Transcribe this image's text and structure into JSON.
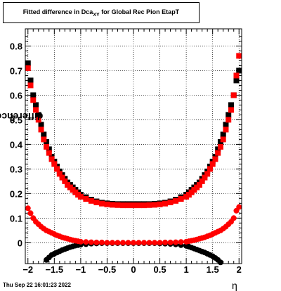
{
  "timestamp": "Thu Sep 22 16:01:23 2022",
  "chart_data": {
    "type": "scatter",
    "title": "Fitted difference in Dca",
    "title_sub": "XY",
    "title_suffix": " for Global Rec Pion EtapT",
    "ylabel": "difference in Dca",
    "ylabel_sub": "XY",
    "xlabel": "η",
    "xlim": [
      -2.05,
      2.05
    ],
    "ylim": [
      -0.085,
      0.87
    ],
    "grid": true,
    "x_ticks": [
      -2,
      -1.5,
      -1,
      -0.5,
      0,
      0.5,
      1,
      1.5,
      2
    ],
    "x_tick_labels": [
      "−2",
      "−1.5",
      "−1",
      "−0.5",
      "0",
      "0.5",
      "1",
      "1.5",
      "2"
    ],
    "y_ticks": [
      0,
      0.1,
      0.2,
      0.3,
      0.4,
      0.5,
      0.6,
      0.7,
      0.8
    ],
    "y_tick_labels": [
      "0",
      "0.1",
      "0.2",
      "0.3",
      "0.4",
      "0.5",
      "0.6",
      "0.7",
      "0.8"
    ],
    "series": [
      {
        "marker": "square",
        "color": "#000000",
        "x": [
          -2.0,
          -1.95,
          -1.9,
          -1.85,
          -1.8,
          -1.75,
          -1.7,
          -1.65,
          -1.6,
          -1.55,
          -1.5,
          -1.45,
          -1.4,
          -1.35,
          -1.3,
          -1.25,
          -1.2,
          -1.15,
          -1.1,
          -1.05,
          -1.0,
          -0.9,
          -0.8,
          -0.7,
          -0.6,
          -0.5,
          -0.4,
          -0.3,
          -0.2,
          -0.1,
          0.0,
          0.1,
          0.2,
          0.3,
          0.4,
          0.5,
          0.6,
          0.7,
          0.8,
          0.9,
          1.0,
          1.05,
          1.1,
          1.15,
          1.2,
          1.25,
          1.3,
          1.35,
          1.4,
          1.45,
          1.5,
          1.55,
          1.6,
          1.65,
          1.7,
          1.75,
          1.8,
          1.85,
          1.9,
          1.95,
          2.0
        ],
        "y": [
          0.73,
          0.66,
          0.6,
          0.56,
          0.52,
          0.48,
          0.44,
          0.41,
          0.38,
          0.35,
          0.33,
          0.31,
          0.29,
          0.275,
          0.26,
          0.245,
          0.235,
          0.225,
          0.215,
          0.205,
          0.195,
          0.185,
          0.175,
          0.168,
          0.163,
          0.16,
          0.158,
          0.157,
          0.157,
          0.157,
          0.157,
          0.157,
          0.157,
          0.157,
          0.158,
          0.16,
          0.163,
          0.168,
          0.175,
          0.185,
          0.195,
          0.205,
          0.215,
          0.225,
          0.235,
          0.245,
          0.26,
          0.275,
          0.29,
          0.31,
          0.33,
          0.35,
          0.38,
          0.41,
          0.44,
          0.48,
          0.52,
          0.56,
          0.6,
          0.66,
          0.7
        ]
      },
      {
        "marker": "square",
        "color": "#ff0000",
        "x": [
          -2.0,
          -1.95,
          -1.9,
          -1.85,
          -1.8,
          -1.75,
          -1.7,
          -1.65,
          -1.6,
          -1.55,
          -1.5,
          -1.45,
          -1.4,
          -1.35,
          -1.3,
          -1.25,
          -1.2,
          -1.15,
          -1.1,
          -1.05,
          -1.0,
          -0.9,
          -0.8,
          -0.7,
          -0.6,
          -0.5,
          -0.4,
          -0.3,
          -0.2,
          -0.1,
          0.0,
          0.1,
          0.2,
          0.3,
          0.4,
          0.5,
          0.6,
          0.7,
          0.8,
          0.9,
          1.0,
          1.05,
          1.1,
          1.15,
          1.2,
          1.25,
          1.3,
          1.35,
          1.4,
          1.45,
          1.5,
          1.55,
          1.6,
          1.65,
          1.7,
          1.75,
          1.8,
          1.85,
          1.9,
          1.95,
          2.0
        ],
        "y": [
          0.71,
          0.64,
          0.58,
          0.54,
          0.5,
          0.46,
          0.42,
          0.39,
          0.365,
          0.34,
          0.32,
          0.3,
          0.28,
          0.265,
          0.25,
          0.235,
          0.225,
          0.215,
          0.205,
          0.195,
          0.187,
          0.178,
          0.17,
          0.164,
          0.159,
          0.156,
          0.154,
          0.153,
          0.152,
          0.152,
          0.152,
          0.152,
          0.152,
          0.153,
          0.154,
          0.156,
          0.159,
          0.164,
          0.17,
          0.178,
          0.187,
          0.195,
          0.205,
          0.215,
          0.225,
          0.235,
          0.25,
          0.265,
          0.28,
          0.3,
          0.32,
          0.34,
          0.365,
          0.39,
          0.42,
          0.46,
          0.5,
          0.54,
          0.6,
          0.68,
          0.76
        ]
      },
      {
        "marker": "circle",
        "color": "#000000",
        "x": [
          -1.65,
          -1.6,
          -1.55,
          -1.5,
          -1.45,
          -1.4,
          -1.35,
          -1.3,
          -1.25,
          -1.2,
          -1.15,
          -1.1,
          -1.05,
          -1.0,
          -0.9,
          -0.8,
          -0.7,
          -0.6,
          -0.5,
          -0.4,
          -0.3,
          -0.2,
          -0.1,
          0.0,
          0.1,
          0.2,
          0.3,
          0.4,
          0.5,
          0.6,
          0.7,
          0.8,
          0.9,
          1.0,
          1.05,
          1.1,
          1.15,
          1.2,
          1.25,
          1.3,
          1.35,
          1.4,
          1.45,
          1.5,
          1.55,
          1.6,
          1.65
        ],
        "y": [
          -0.07,
          -0.06,
          -0.05,
          -0.045,
          -0.04,
          -0.035,
          -0.03,
          -0.026,
          -0.022,
          -0.018,
          -0.015,
          -0.012,
          -0.01,
          -0.008,
          -0.006,
          -0.004,
          -0.003,
          -0.002,
          -0.002,
          -0.002,
          -0.002,
          -0.002,
          -0.002,
          -0.002,
          -0.002,
          -0.002,
          -0.002,
          -0.002,
          -0.003,
          -0.004,
          -0.005,
          -0.007,
          -0.01,
          -0.013,
          -0.016,
          -0.02,
          -0.024,
          -0.028,
          -0.032,
          -0.036,
          -0.04,
          -0.045,
          -0.05,
          -0.055,
          -0.062,
          -0.07,
          -0.08
        ]
      },
      {
        "marker": "circle",
        "color": "#ff0000",
        "x": [
          -2.0,
          -1.95,
          -1.9,
          -1.85,
          -1.8,
          -1.75,
          -1.7,
          -1.65,
          -1.6,
          -1.55,
          -1.5,
          -1.45,
          -1.4,
          -1.35,
          -1.3,
          -1.25,
          -1.2,
          -1.15,
          -1.1,
          -1.05,
          -1.0,
          -0.9,
          -0.8,
          -0.7,
          -0.6,
          -0.5,
          -0.4,
          -0.3,
          -0.2,
          -0.1,
          0.0,
          0.1,
          0.2,
          0.3,
          0.4,
          0.5,
          0.6,
          0.7,
          0.8,
          0.9,
          1.0,
          1.05,
          1.1,
          1.15,
          1.2,
          1.25,
          1.3,
          1.35,
          1.4,
          1.45,
          1.5,
          1.55,
          1.6,
          1.65,
          1.7,
          1.75,
          1.8,
          1.85,
          1.9,
          1.95,
          2.0
        ],
        "y": [
          0.14,
          0.12,
          0.1,
          0.085,
          0.075,
          0.065,
          0.057,
          0.05,
          0.045,
          0.04,
          0.035,
          0.03,
          0.026,
          0.022,
          0.019,
          0.016,
          0.013,
          0.01,
          0.008,
          0.006,
          0.004,
          0.003,
          0.002,
          0.001,
          0.001,
          0.0,
          0.0,
          0.0,
          0.0,
          0.0,
          0.0,
          0.0,
          0.0,
          0.0,
          0.0,
          0.0,
          0.001,
          0.001,
          0.002,
          0.003,
          0.004,
          0.006,
          0.008,
          0.01,
          0.013,
          0.016,
          0.019,
          0.022,
          0.026,
          0.03,
          0.035,
          0.04,
          0.045,
          0.05,
          0.057,
          0.065,
          0.075,
          0.085,
          0.1,
          0.13,
          0.145
        ]
      }
    ]
  }
}
